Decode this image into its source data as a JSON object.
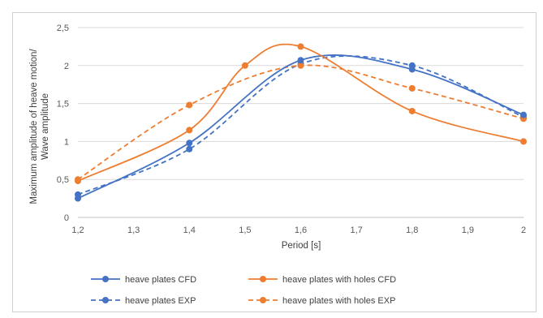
{
  "chart_data": {
    "type": "line",
    "title": "",
    "xlabel": "Period [s]",
    "ylabel_lines": [
      "Maximum amplitude of heave motion/",
      "Wave amplitude"
    ],
    "xlim": [
      1.2,
      2.0
    ],
    "ylim": [
      0,
      2.5
    ],
    "x_ticks": [
      1.2,
      1.3,
      1.4,
      1.5,
      1.6,
      1.7,
      1.8,
      1.9,
      2.0
    ],
    "x_tick_labels": [
      "1,2",
      "1,3",
      "1,4",
      "1,5",
      "1,6",
      "1,7",
      "1,8",
      "1,9",
      "2"
    ],
    "y_ticks": [
      0,
      0.5,
      1,
      1.5,
      2,
      2.5
    ],
    "y_tick_labels": [
      "0",
      "0,5",
      "1",
      "1,5",
      "2",
      "2,5"
    ],
    "grid": "horizontal",
    "legend_position": "bottom",
    "series": [
      {
        "name": "heave plates CFD",
        "color": "#4472c4",
        "dash": "solid",
        "x": [
          1.2,
          1.4,
          1.6,
          1.8,
          2.0
        ],
        "y": [
          0.25,
          0.98,
          2.07,
          1.95,
          1.35
        ]
      },
      {
        "name": "heave plates with holes CFD",
        "color": "#ed7d31",
        "dash": "solid",
        "x": [
          1.2,
          1.4,
          1.5,
          1.6,
          1.8,
          2.0
        ],
        "y": [
          0.48,
          1.15,
          2.0,
          2.25,
          1.4,
          1.0
        ]
      },
      {
        "name": "heave plates EXP",
        "color": "#4472c4",
        "dash": "dashed",
        "x": [
          1.2,
          1.4,
          1.6,
          1.8,
          2.0
        ],
        "y": [
          0.3,
          0.9,
          2.02,
          2.0,
          1.32
        ]
      },
      {
        "name": "heave plates with holes EXP",
        "color": "#ed7d31",
        "dash": "dashed",
        "x": [
          1.2,
          1.4,
          1.6,
          1.8,
          2.0
        ],
        "y": [
          0.5,
          1.48,
          2.0,
          1.7,
          1.3
        ]
      }
    ]
  }
}
